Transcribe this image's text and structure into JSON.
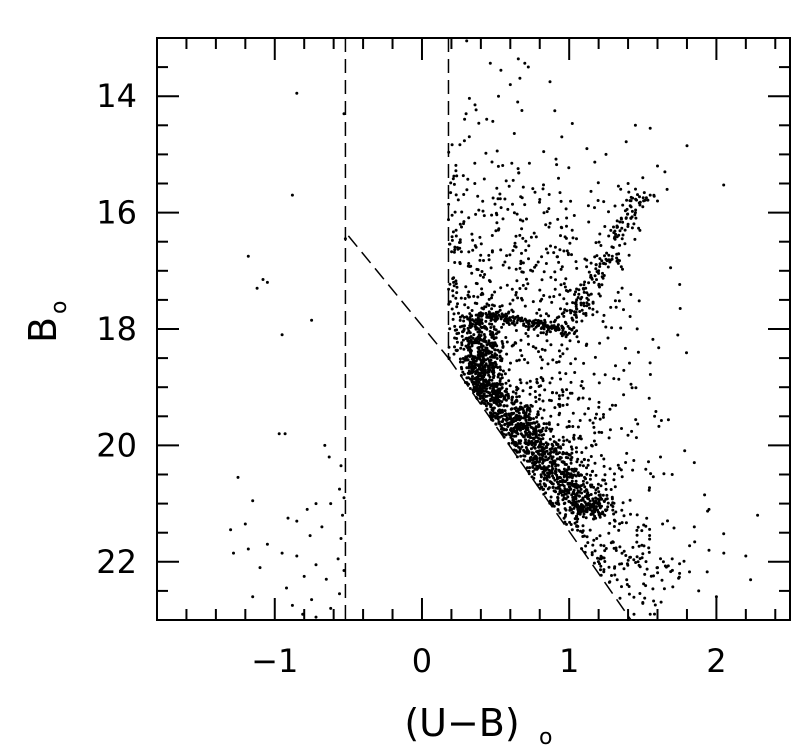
{
  "chart_data": {
    "type": "scatter",
    "xlabel": "(U−B)",
    "xlabel_subscript": "o",
    "ylabel": "B",
    "ylabel_subscript": "o",
    "xlim": [
      -1.8,
      2.5
    ],
    "ylim": [
      23.0,
      13.0
    ],
    "y_inverted": true,
    "grid": false,
    "x_ticks": {
      "major": [
        -1,
        0,
        1,
        2
      ],
      "major_labels": [
        "−1",
        "0",
        "1",
        "2"
      ],
      "minor": [
        -1.8,
        -1.6,
        -1.4,
        -1.2,
        -0.8,
        -0.6,
        -0.4,
        -0.2,
        0.2,
        0.4,
        0.6,
        0.8,
        1.2,
        1.4,
        1.6,
        1.8,
        2.2,
        2.4
      ]
    },
    "y_ticks": {
      "major": [
        14,
        16,
        18,
        20,
        22
      ],
      "major_labels": [
        "14",
        "16",
        "18",
        "20",
        "22"
      ],
      "minor": [
        13.5,
        14.5,
        15,
        15.5,
        16.5,
        17,
        17.5,
        18.5,
        19,
        19.5,
        20.5,
        21,
        21.5,
        22.5
      ]
    },
    "dashed_lines": [
      {
        "name": "left-vertical-cut",
        "x": [
          -0.52,
          -0.52
        ],
        "y": [
          13.0,
          23.0
        ]
      },
      {
        "name": "right-vertical-cut",
        "x": [
          0.18,
          0.18
        ],
        "y": [
          13.0,
          18.5
        ]
      },
      {
        "name": "upper-diagonal-cut",
        "x": [
          -0.5,
          0.18
        ],
        "y": [
          16.4,
          18.5
        ]
      },
      {
        "name": "lower-diagonal-cut",
        "x": [
          0.18,
          1.42
        ],
        "y": [
          18.5,
          23.0
        ]
      }
    ],
    "series": [
      {
        "points": [
          [
            -0.85,
            13.95
          ],
          [
            -0.53,
            14.3
          ],
          [
            -0.88,
            15.7
          ],
          [
            -0.52,
            16.45
          ],
          [
            -1.18,
            16.75
          ],
          [
            -1.08,
            17.15
          ],
          [
            -1.05,
            17.2
          ],
          [
            -1.12,
            17.3
          ],
          [
            -0.75,
            17.85
          ],
          [
            -0.95,
            18.1
          ],
          [
            -0.97,
            19.8
          ],
          [
            -0.93,
            19.8
          ],
          [
            -0.66,
            20.0
          ],
          [
            -0.63,
            20.2
          ],
          [
            -0.55,
            20.35
          ],
          [
            -1.25,
            20.55
          ],
          [
            -0.56,
            20.75
          ],
          [
            -0.53,
            20.9
          ],
          [
            -1.15,
            20.95
          ],
          [
            -0.72,
            21.0
          ],
          [
            -0.62,
            21.0
          ],
          [
            -0.78,
            21.1
          ],
          [
            -0.54,
            21.2
          ],
          [
            -0.91,
            21.25
          ],
          [
            -0.85,
            21.3
          ],
          [
            -1.2,
            21.35
          ],
          [
            -1.3,
            21.45
          ],
          [
            -0.68,
            21.4
          ],
          [
            -0.76,
            21.55
          ],
          [
            -0.55,
            21.6
          ],
          [
            -1.05,
            21.7
          ],
          [
            -1.18,
            21.78
          ],
          [
            -1.28,
            21.85
          ],
          [
            -0.95,
            21.85
          ],
          [
            -0.85,
            21.9
          ],
          [
            -0.57,
            21.95
          ],
          [
            -0.72,
            22.05
          ],
          [
            -1.1,
            22.1
          ],
          [
            -0.53,
            22.15
          ],
          [
            -0.8,
            22.25
          ],
          [
            -0.65,
            22.3
          ],
          [
            -0.92,
            22.45
          ],
          [
            -0.56,
            22.55
          ],
          [
            -1.15,
            22.6
          ],
          [
            -0.75,
            22.65
          ],
          [
            -0.88,
            22.75
          ],
          [
            -0.62,
            22.8
          ],
          [
            -0.81,
            22.9
          ],
          [
            -0.72,
            22.95
          ],
          [
            0.6,
            13.8
          ],
          [
            0.87,
            13.75
          ],
          [
            0.52,
            14.0
          ],
          [
            0.65,
            14.1
          ],
          [
            0.36,
            14.15
          ],
          [
            0.3,
            14.3
          ],
          [
            1.45,
            14.5
          ],
          [
            1.55,
            14.55
          ],
          [
            0.95,
            14.7
          ],
          [
            1.8,
            14.85
          ],
          [
            1.12,
            14.9
          ],
          [
            1.25,
            15.0
          ],
          [
            1.6,
            15.2
          ],
          [
            1.65,
            15.3
          ],
          [
            1.5,
            15.4
          ],
          [
            1.4,
            15.5
          ],
          [
            1.35,
            15.6
          ],
          [
            1.55,
            15.7
          ],
          [
            1.6,
            15.8
          ],
          [
            1.5,
            15.9
          ],
          [
            1.45,
            16.0
          ],
          [
            1.42,
            16.1
          ],
          [
            1.4,
            16.2
          ],
          [
            1.38,
            16.3
          ],
          [
            1.36,
            16.45
          ],
          [
            1.3,
            16.6
          ],
          [
            1.25,
            16.8
          ],
          [
            1.2,
            17.0
          ],
          [
            1.17,
            17.2
          ],
          [
            1.15,
            17.4
          ],
          [
            1.12,
            17.6
          ],
          [
            1.05,
            17.8
          ],
          [
            0.95,
            17.95
          ],
          [
            0.85,
            18.05
          ],
          [
            0.75,
            17.95
          ],
          [
            0.65,
            17.85
          ],
          [
            0.55,
            17.78
          ],
          [
            0.45,
            17.8
          ],
          [
            0.38,
            18.05
          ],
          [
            1.47,
            18.4
          ],
          [
            1.58,
            19.5
          ],
          [
            1.42,
            18.95
          ],
          [
            1.62,
            20.2
          ],
          [
            1.7,
            20.5
          ],
          [
            1.92,
            20.85
          ],
          [
            1.95,
            21.1
          ],
          [
            2.28,
            21.2
          ],
          [
            1.85,
            21.4
          ],
          [
            1.95,
            21.8
          ],
          [
            2.05,
            21.85
          ],
          [
            2.2,
            21.9
          ],
          [
            1.7,
            21.95
          ],
          [
            1.6,
            22.1
          ],
          [
            1.75,
            22.2
          ],
          [
            1.88,
            22.5
          ],
          [
            2.0,
            22.6
          ],
          [
            1.5,
            22.7
          ],
          [
            1.55,
            22.9
          ]
        ],
        "dense_regions": [
          {
            "name": "main-sequence-turnoff-blob",
            "x": 0.4,
            "y": 18.4,
            "sx": 0.08,
            "sy": 0.45,
            "n": 520
          },
          {
            "name": "main-sequence-band",
            "x0": 0.4,
            "y0": 18.9,
            "x1": 1.15,
            "y1": 21.2,
            "width": 0.09,
            "n": 900
          },
          {
            "name": "main-sequence-wide",
            "x0": 0.35,
            "y0": 18.8,
            "x1": 1.35,
            "y1": 22.6,
            "width": 0.28,
            "n": 800
          },
          {
            "name": "subgiant-branch",
            "x0": 0.45,
            "y0": 17.75,
            "x1": 1.0,
            "y1": 18.05,
            "width": 0.05,
            "n": 160
          },
          {
            "name": "giant-branch",
            "x0": 1.0,
            "y0": 17.9,
            "x1": 1.5,
            "y1": 15.6,
            "width": 0.07,
            "n": 180
          },
          {
            "name": "blue-straggler-field",
            "x": 0.55,
            "y": 16.8,
            "sx": 0.35,
            "sy": 1.4,
            "n": 380
          },
          {
            "name": "red-field",
            "x": 0.95,
            "y": 19.5,
            "sx": 0.35,
            "sy": 1.6,
            "n": 400
          }
        ]
      }
    ]
  }
}
